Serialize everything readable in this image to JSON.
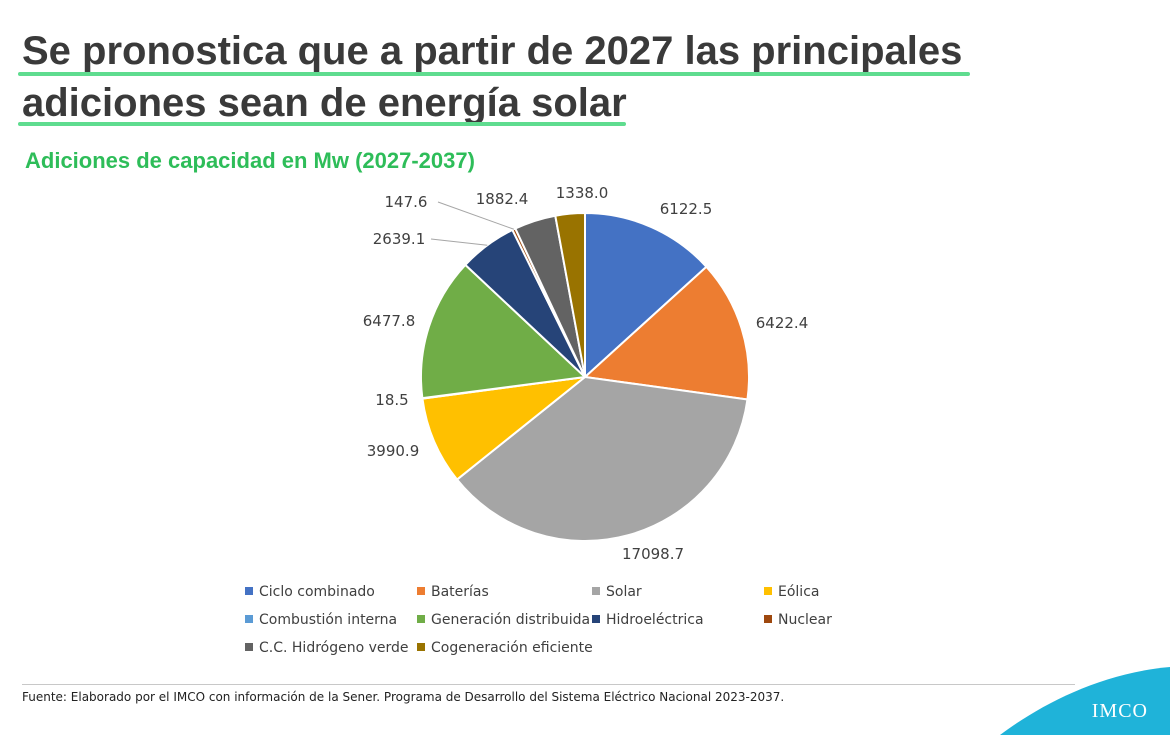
{
  "header": {
    "title_line1": "Se pronostica que a partir de 2027 las principales",
    "title_line2": "adiciones  sean  de energía solar",
    "subtitle": "Adiciones de capacidad en   Mw (2027-2037)"
  },
  "chart_data": {
    "type": "pie",
    "title": "Adiciones de capacidad en Mw (2027-2037)",
    "legend_position": "bottom",
    "slices": [
      {
        "name": "Ciclo combinado",
        "value": 6122.5,
        "label": "6122.5",
        "color": "#4472c4"
      },
      {
        "name": "Baterías",
        "value": 6422.4,
        "label": "6422.4",
        "color": "#ed7d31"
      },
      {
        "name": "Solar",
        "value": 17098.7,
        "label": "17098.7",
        "color": "#a5a5a5"
      },
      {
        "name": "Eólica",
        "value": 3990.9,
        "label": "3990.9",
        "color": "#ffc000"
      },
      {
        "name": "Combustión interna",
        "value": 18.5,
        "label": "18.5",
        "color": "#5b9bd5"
      },
      {
        "name": "Generación distribuida",
        "value": 6477.8,
        "label": "6477.8",
        "color": "#70ad47"
      },
      {
        "name": "Hidroeléctrica",
        "value": 2639.1,
        "label": "2639.1",
        "color": "#264478"
      },
      {
        "name": "Nuclear",
        "value": 147.6,
        "label": "147.6",
        "color": "#9e480e"
      },
      {
        "name": "C.C. Hidrógeno verde",
        "value": 1882.4,
        "label": "1882.4",
        "color": "#636363"
      },
      {
        "name": "Cogeneración eficiente",
        "value": 1338.0,
        "label": "1338.0",
        "color": "#997300"
      }
    ]
  },
  "footer": {
    "source": "Fuente: Elaborado por el IMCO con información de la Sener. Programa de Desarrollo del Sistema Eléctrico Nacional 2023-2037."
  },
  "logo": {
    "text": "IMCO",
    "color": "#1fb3d9"
  }
}
